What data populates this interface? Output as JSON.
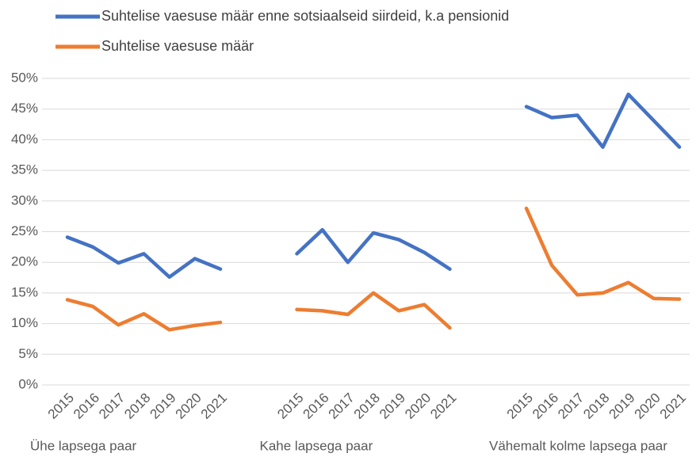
{
  "chart_data": {
    "type": "line",
    "categories": [
      "2015",
      "2016",
      "2017",
      "2018",
      "2019",
      "2020",
      "2021",
      null,
      null,
      "2015",
      "2016",
      "2017",
      "2018",
      "2019",
      "2020",
      "2021",
      null,
      null,
      "2015",
      "2016",
      "2017",
      "2018",
      "2019",
      "2020",
      "2021"
    ],
    "groups": [
      "Ühe lapsega paar",
      "Kahe lapsega paar",
      "Vähemalt kolme lapsega paar"
    ],
    "series": [
      {
        "name": "Suhtelise vaesuse määr enne sotsiaalseid siirdeid, k.a pensionid",
        "color": "#4472c4",
        "values": [
          24.1,
          22.5,
          19.9,
          21.4,
          17.6,
          20.6,
          18.9,
          null,
          null,
          21.4,
          25.3,
          20.0,
          24.8,
          23.7,
          21.6,
          18.9,
          null,
          null,
          45.4,
          43.6,
          44.0,
          38.8,
          47.4,
          43.1,
          38.8
        ]
      },
      {
        "name": "Suhtelise vaesuse määr",
        "color": "#ed7d31",
        "values": [
          13.9,
          12.8,
          9.8,
          11.6,
          9.0,
          9.7,
          10.2,
          null,
          null,
          12.3,
          12.1,
          11.5,
          15.0,
          12.1,
          13.1,
          9.3,
          null,
          null,
          28.8,
          19.5,
          14.7,
          15.0,
          16.7,
          14.1,
          14.0
        ]
      }
    ],
    "ylim": [
      0,
      50
    ],
    "yticks": [
      {
        "value": 0,
        "label": "0%"
      },
      {
        "value": 5,
        "label": "5%"
      },
      {
        "value": 10,
        "label": "10%"
      },
      {
        "value": 15,
        "label": "15%"
      },
      {
        "value": 20,
        "label": "20%"
      },
      {
        "value": 25,
        "label": "25%"
      },
      {
        "value": 30,
        "label": "30%"
      },
      {
        "value": 35,
        "label": "35%"
      },
      {
        "value": 40,
        "label": "40%"
      },
      {
        "value": 45,
        "label": "45%"
      },
      {
        "value": 50,
        "label": "50%"
      }
    ],
    "grid": true,
    "legend": "top"
  }
}
